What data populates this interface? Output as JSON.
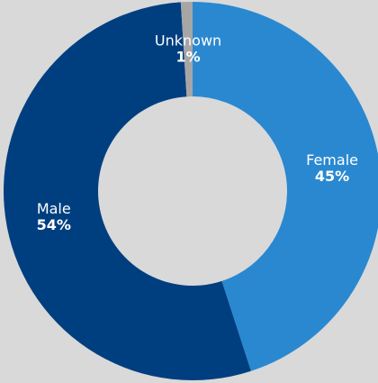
{
  "chart_data": {
    "type": "donut",
    "categories": [
      "Female",
      "Male",
      "Unknown"
    ],
    "values": [
      45,
      54,
      1
    ],
    "value_labels": [
      "45%",
      "54%",
      "1%"
    ],
    "colors": [
      "#2a88d0",
      "#003f7f",
      "#a6a6a6"
    ]
  }
}
